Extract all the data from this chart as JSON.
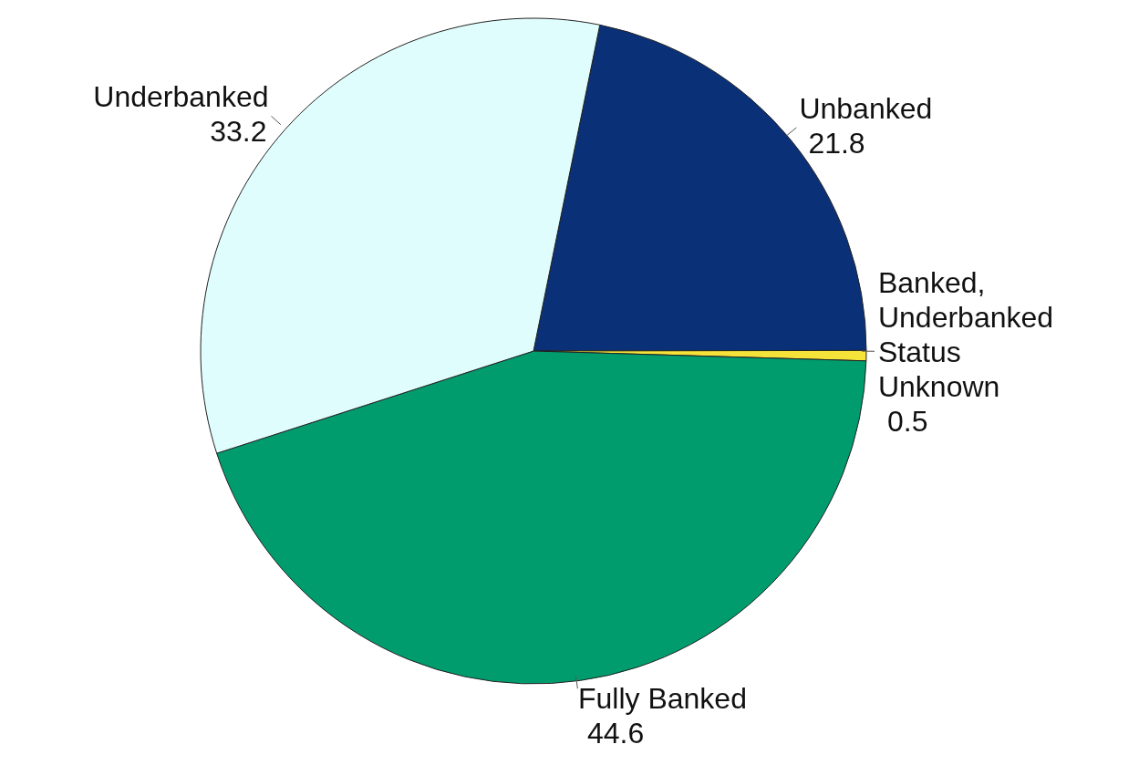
{
  "chart_data": {
    "type": "pie",
    "categories": [
      "Unbanked",
      "Banked, Underbanked Status Unknown",
      "Fully Banked",
      "Underbanked"
    ],
    "values": [
      21.8,
      0.5,
      44.6,
      33.2
    ],
    "colors": [
      "#0a3178",
      "#f5e33a",
      "#009c6e",
      "#e0fdfd"
    ],
    "data_labels": true,
    "legend": false
  }
}
